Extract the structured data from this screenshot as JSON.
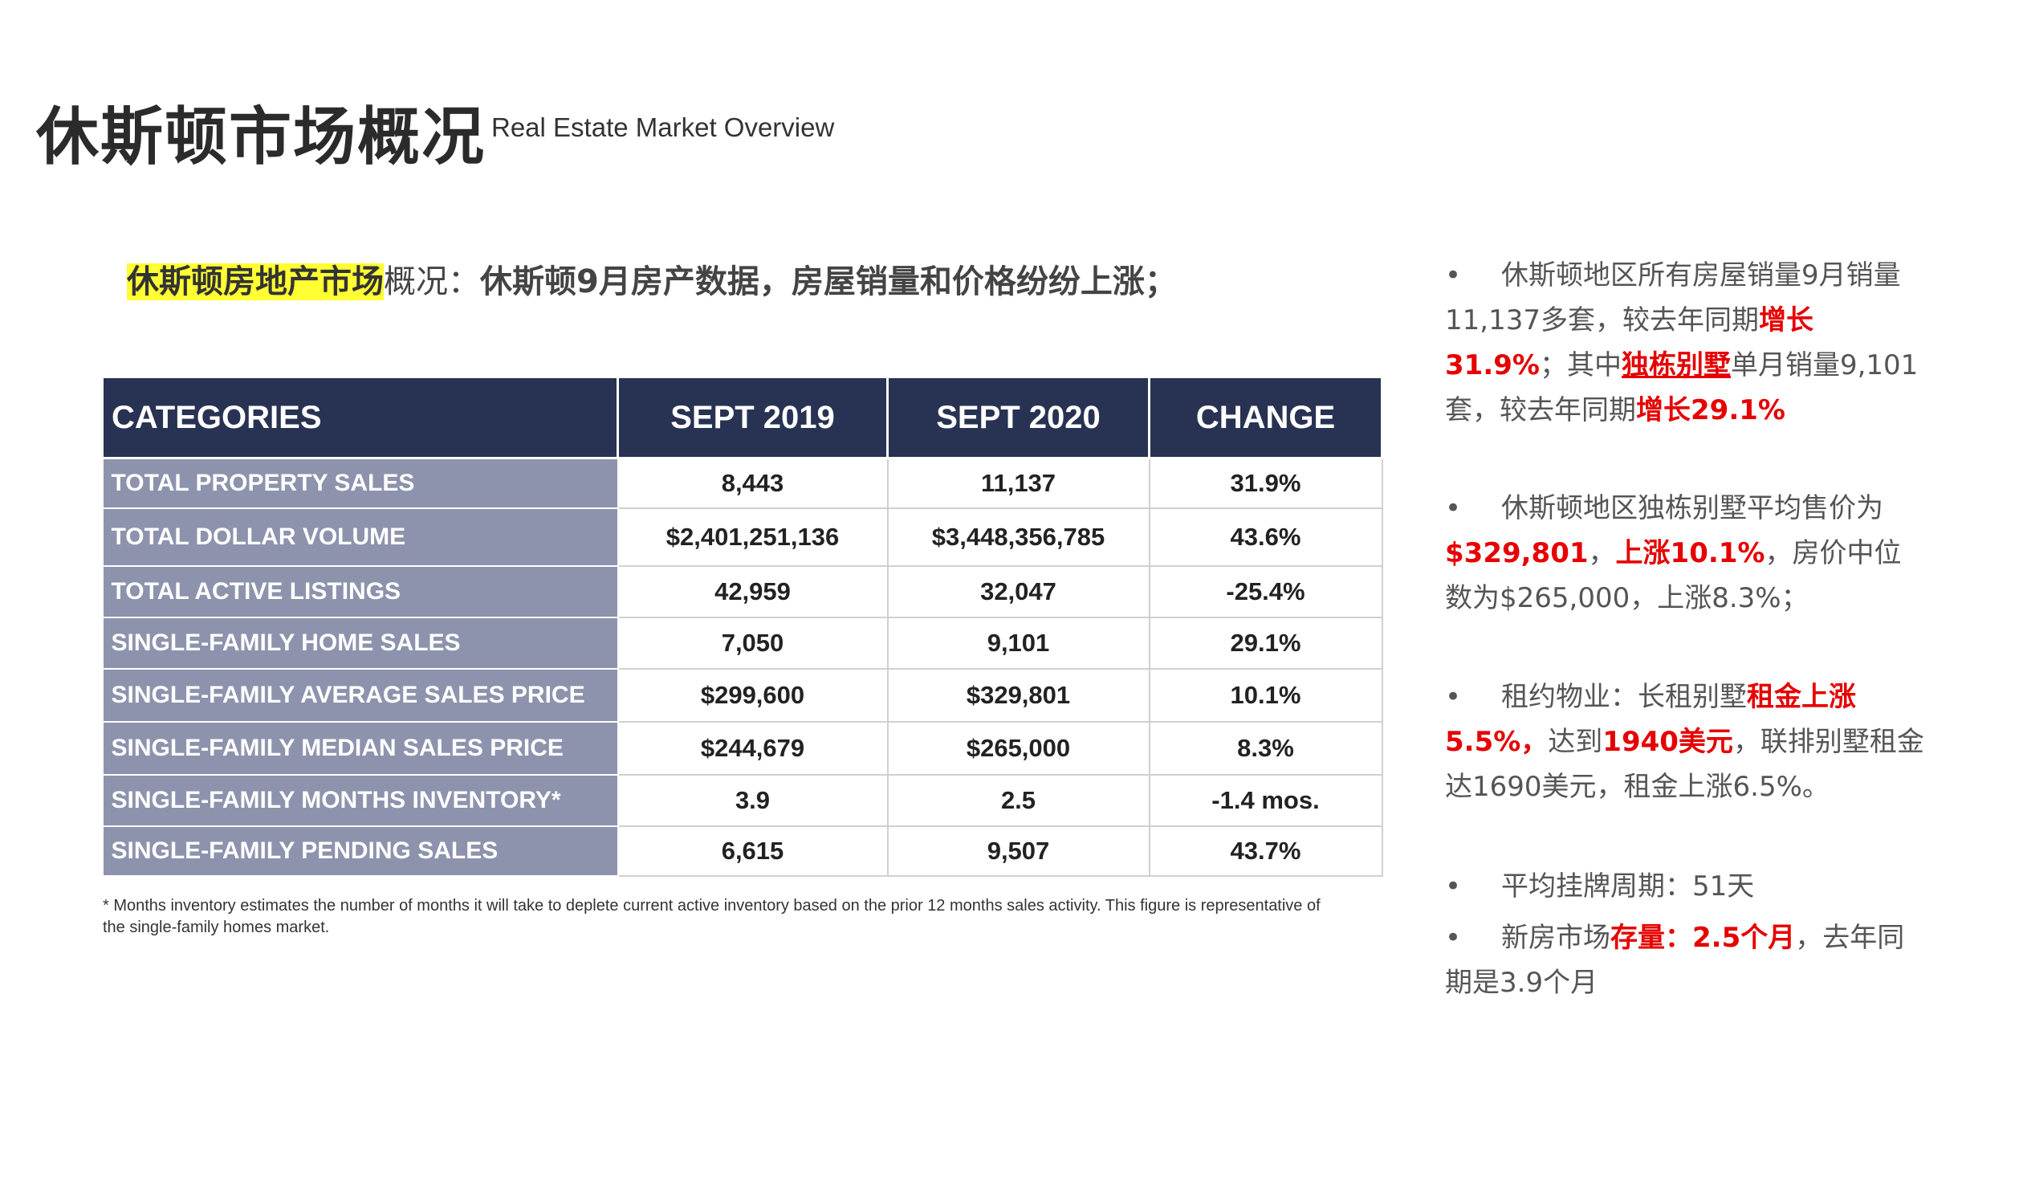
{
  "header": {
    "title": "休斯顿市场概况",
    "subtitle": "Real Estate Market Overview"
  },
  "intro": {
    "highlight": "休斯顿房地产市场",
    "plain": "概况：",
    "rest": "休斯顿9月房产数据，房屋销量和价格纷纷上涨；"
  },
  "table": {
    "headers": [
      "CATEGORIES",
      "SEPT 2019",
      "SEPT 2020",
      "CHANGE"
    ],
    "rows": [
      [
        "TOTAL PROPERTY SALES",
        "8,443",
        "11,137",
        "31.9%"
      ],
      [
        "TOTAL DOLLAR VOLUME",
        "$2,401,251,136",
        "$3,448,356,785",
        "43.6%"
      ],
      [
        "TOTAL ACTIVE LISTINGS",
        "42,959",
        "32,047",
        "-25.4%"
      ],
      [
        "SINGLE-FAMILY HOME SALES",
        "7,050",
        "9,101",
        "29.1%"
      ],
      [
        "SINGLE-FAMILY AVERAGE SALES PRICE",
        "$299,600",
        "$329,801",
        "10.1%"
      ],
      [
        "SINGLE-FAMILY MEDIAN SALES PRICE",
        "$244,679",
        "$265,000",
        "8.3%"
      ],
      [
        "SINGLE-FAMILY MONTHS INVENTORY*",
        "3.9",
        "2.5",
        "-1.4 mos."
      ],
      [
        "SINGLE-FAMILY PENDING SALES",
        "6,615",
        "9,507",
        "43.7%"
      ]
    ],
    "footnote": "* Months inventory estimates the number of months it will take to deplete current active inventory based on the prior 12 months sales activity. This figure is representative of the single-family homes market."
  },
  "bullets": {
    "b1": {
      "t1": "休斯顿地区所有房屋销量9月销量11,137多套，较去年同期",
      "r1": "增长31.9%",
      "t2": "；其中",
      "r2": "独栋别墅",
      "t3": "单月销量9,101套，较去年同期",
      "r3": "增长29.1%"
    },
    "b2": {
      "t1": "休斯顿地区独栋别墅平均售价为",
      "r1": "$329,801",
      "t2": "，",
      "r2": "上涨10.1%",
      "t3": "，房价中位数为$265,000，上涨8.3%；"
    },
    "b3": {
      "t1": "租约物业：长租别墅",
      "r1": "租金上涨5.5%，",
      "t2": "达到",
      "r2": "1940美元",
      "t3": "，联排别墅租金达1690美元，租金上涨6.5%。"
    },
    "b4": {
      "t1": "平均挂牌周期：51天"
    },
    "b5": {
      "t1": "新房市场",
      "r1": "存量：2.5个月",
      "t2": "，去年同期是3.9个月"
    }
  }
}
